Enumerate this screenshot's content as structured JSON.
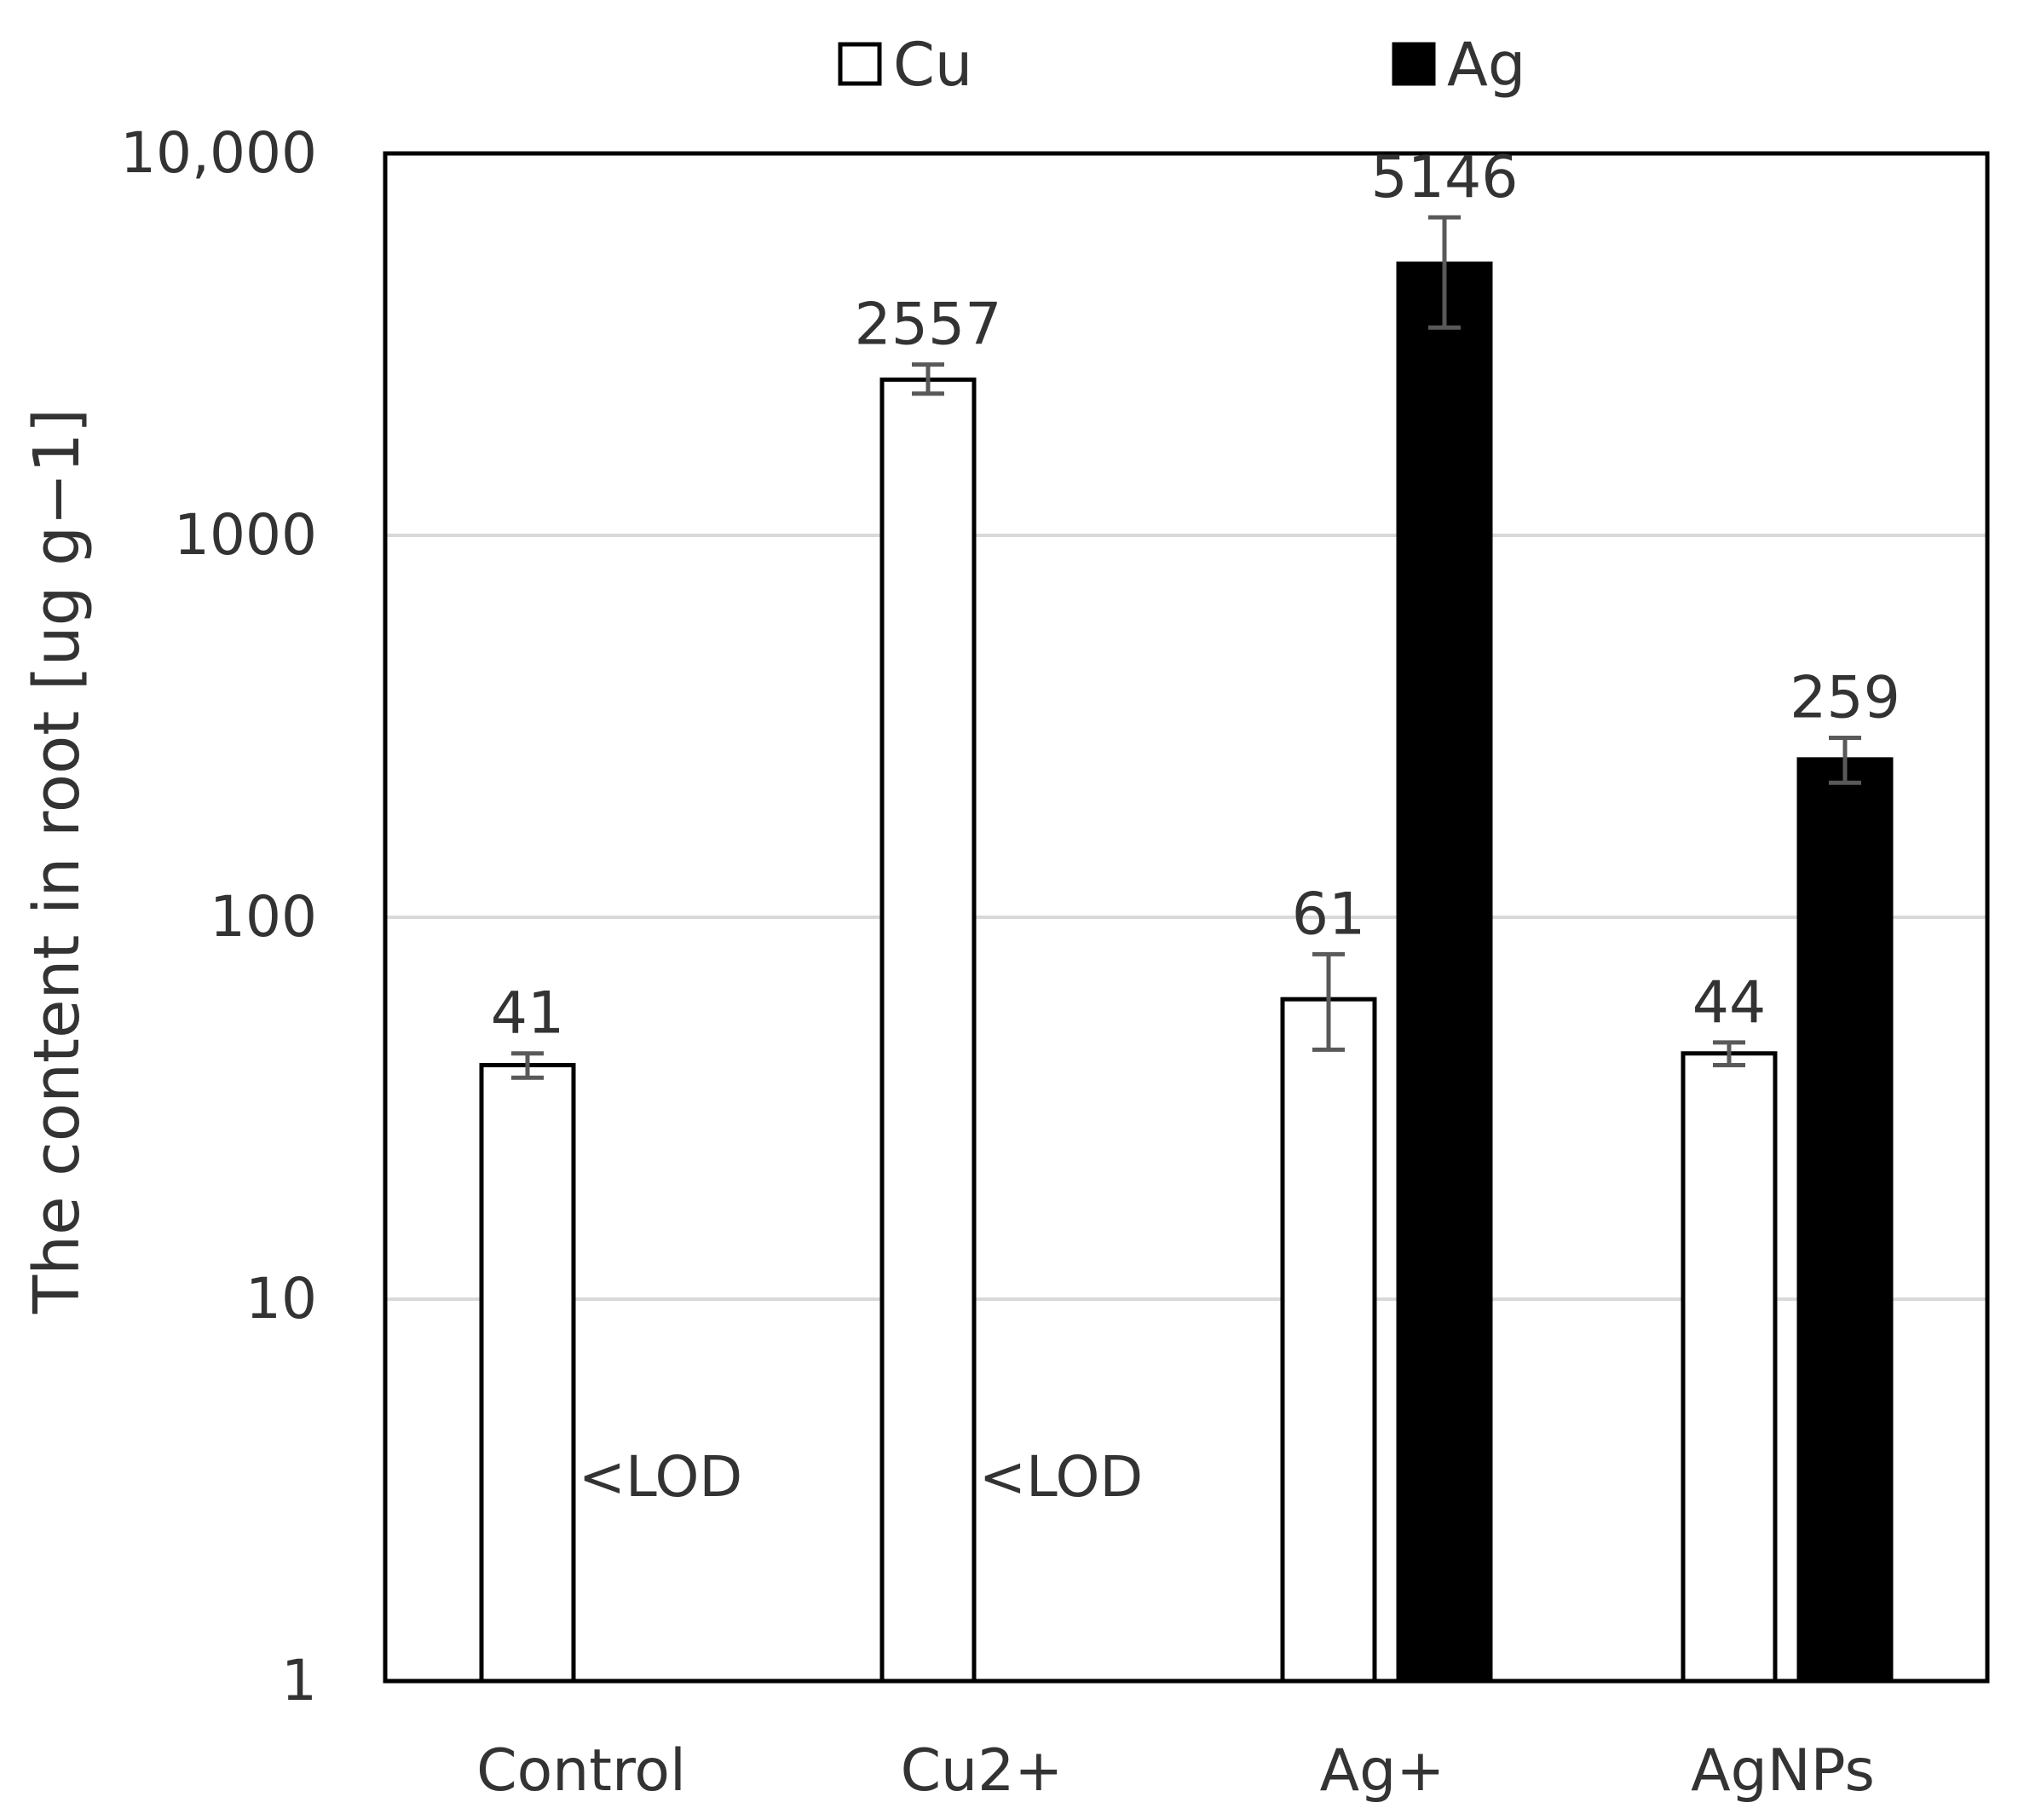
{
  "chart_data": {
    "type": "bar",
    "yscale": "log",
    "ylim": [
      1,
      10000
    ],
    "ylabel": "The content in root [ug g−1]",
    "xlabel": "",
    "title": "",
    "yticks": [
      {
        "value": 1,
        "label": "1"
      },
      {
        "value": 10,
        "label": "10"
      },
      {
        "value": 100,
        "label": "100"
      },
      {
        "value": 1000,
        "label": "1000"
      },
      {
        "value": 10000,
        "label": "10,000"
      }
    ],
    "grid": true,
    "legend_position": "top",
    "categories": [
      "Control",
      "Cu2+",
      "Ag+",
      "AgNPs"
    ],
    "series": [
      {
        "name": "Cu",
        "fill": "#ffffff",
        "stroke": "#000000",
        "values": [
          41,
          2557,
          61,
          44
        ],
        "error": [
          [
            38,
            44
          ],
          [
            2350,
            2800
          ],
          [
            45,
            80
          ],
          [
            41,
            47
          ]
        ],
        "labels": [
          "41",
          "2557",
          "61",
          "44"
        ]
      },
      {
        "name": "Ag",
        "fill": "#000000",
        "stroke": "#000000",
        "values": [
          null,
          null,
          5146,
          259
        ],
        "error": [
          null,
          null,
          [
            3500,
            6800
          ],
          [
            225,
            295
          ]
        ],
        "labels": [
          "<LOD",
          "<LOD",
          "5146",
          "259"
        ]
      }
    ],
    "colors": {
      "axis": "#000000",
      "grid": "#d9d9d9",
      "error_bar": "#595959"
    }
  }
}
